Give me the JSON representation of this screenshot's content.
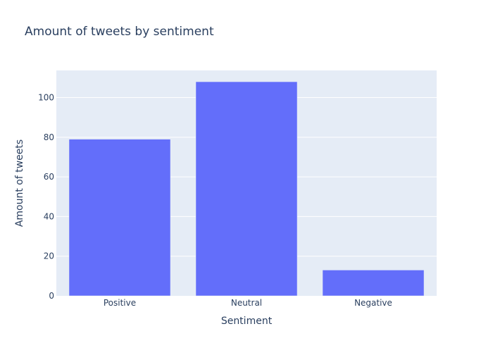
{
  "chart_data": {
    "type": "bar",
    "title": "Amount of tweets by sentiment",
    "xlabel": "Sentiment",
    "ylabel": "Amount of tweets",
    "categories": [
      "Positive",
      "Neutral",
      "Negative"
    ],
    "values": [
      79,
      108,
      13
    ],
    "ylim": [
      0,
      113.7
    ],
    "yticks": [
      0,
      20,
      40,
      60,
      80,
      100
    ],
    "grid": true,
    "colors": {
      "bar": "#636efa",
      "plot_bg": "#e5ecf6",
      "grid": "#ffffff",
      "text": "#2a3f5f",
      "tick_text": "#2a3f5f"
    }
  }
}
